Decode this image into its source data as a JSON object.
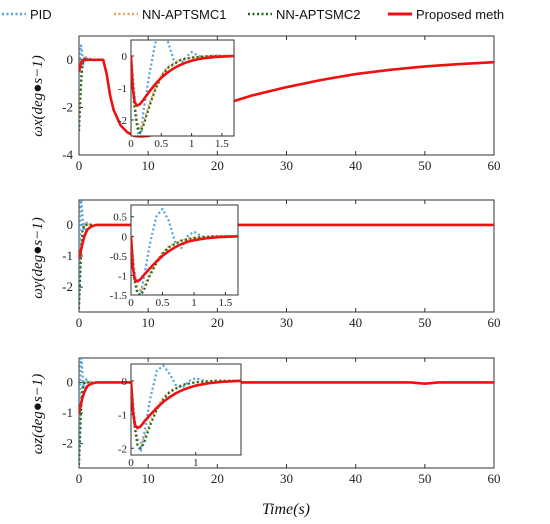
{
  "chart_data": {
    "type": "line",
    "legend": {
      "placement": "top",
      "entries": [
        {
          "name": "PID",
          "color": "#4fa3e0",
          "dash": "dot"
        },
        {
          "name": "NN-APTSMC1",
          "color": "#f4a460",
          "dash": "dot"
        },
        {
          "name": "NN-APTSMC2",
          "color": "#1a6b1a",
          "dash": "dot"
        },
        {
          "name": "Proposed meth",
          "color": "#ee1111",
          "dash": "solid"
        }
      ]
    },
    "xlabel": "Time(s)",
    "xlim": [
      0,
      60
    ],
    "xticks": [
      "0",
      "10",
      "20",
      "30",
      "40",
      "50",
      "60"
    ],
    "grid": false,
    "panels": [
      {
        "ylabel": "ωx(deg●s−1)",
        "ylim": [
          -4,
          1
        ],
        "yticks": [
          "0",
          "-2",
          "-4"
        ],
        "series": [
          {
            "name": "PID",
            "x": [
              0,
              0.1,
              0.2,
              0.3,
              0.45,
              0.6,
              0.8,
              1.0,
              1.3,
              1.6,
              2.0,
              3.5
            ],
            "y": [
              -3.0,
              -1.5,
              0.3,
              0.6,
              0.3,
              -0.2,
              -0.1,
              0.1,
              0.0,
              0.05,
              0.0,
              0.0
            ]
          },
          {
            "name": "NN-APTSMC1",
            "x": [
              0,
              0.15,
              0.3,
              0.5,
              0.8,
              1.2,
              2.0,
              3.5
            ],
            "y": [
              -2.6,
              -1.8,
              -0.8,
              -0.1,
              0.1,
              0.0,
              0.0,
              0.0
            ]
          },
          {
            "name": "NN-APTSMC2",
            "x": [
              0,
              0.15,
              0.3,
              0.5,
              0.8,
              1.2,
              2.0,
              3.5
            ],
            "y": [
              -3.0,
              -2.0,
              -1.0,
              -0.2,
              0.05,
              0.0,
              0.0,
              0.0
            ]
          },
          {
            "name": "Proposed meth",
            "x": [
              0,
              0.3,
              0.7,
              1.2,
              2.0,
              3.0,
              3.5,
              4.0,
              4.5,
              5,
              6,
              7,
              8,
              9,
              10,
              11,
              12,
              14,
              16,
              18,
              20,
              25,
              30,
              35,
              40,
              45,
              50,
              55,
              60
            ],
            "y": [
              -0.5,
              -0.1,
              0.0,
              0.0,
              0.0,
              0.0,
              0.0,
              -0.6,
              -1.5,
              -2.1,
              -2.75,
              -3.05,
              -3.2,
              -3.22,
              -3.2,
              -3.12,
              -3.0,
              -2.75,
              -2.45,
              -2.2,
              -1.95,
              -1.5,
              -1.15,
              -0.85,
              -0.6,
              -0.42,
              -0.28,
              -0.18,
              -0.1
            ]
          }
        ],
        "inset": {
          "xlim": [
            0,
            1.7
          ],
          "ylim": [
            -2.5,
            0.5
          ],
          "xticks": [
            "0",
            "0.5",
            "1",
            "1.5"
          ],
          "yticks": [
            "0",
            "-1",
            "-2"
          ],
          "series": [
            {
              "name": "PID",
              "x": [
                0,
                0.05,
                0.1,
                0.15,
                0.2,
                0.3,
                0.4,
                0.5,
                0.6,
                0.7,
                0.8,
                0.9,
                1.0,
                1.1,
                1.2,
                1.3,
                1.4,
                1.5,
                1.6,
                1.7
              ],
              "y": [
                0.0,
                -1.0,
                -2.2,
                -2.8,
                -1.8,
                -0.6,
                0.4,
                0.8,
                0.5,
                -0.1,
                -0.3,
                -0.05,
                0.12,
                0.02,
                -0.05,
                0.0,
                0.02,
                0.0,
                0.0,
                0.0
              ]
            },
            {
              "name": "NN-APTSMC1",
              "x": [
                0,
                0.05,
                0.1,
                0.15,
                0.2,
                0.3,
                0.4,
                0.5,
                0.6,
                0.8,
                1.0,
                1.3,
                1.7
              ],
              "y": [
                0.0,
                -1.2,
                -2.0,
                -2.3,
                -2.1,
                -1.5,
                -1.0,
                -0.6,
                -0.35,
                -0.12,
                -0.05,
                0.0,
                0.0
              ]
            },
            {
              "name": "NN-APTSMC2",
              "x": [
                0,
                0.05,
                0.1,
                0.15,
                0.2,
                0.3,
                0.4,
                0.5,
                0.6,
                0.8,
                1.0,
                1.3,
                1.7
              ],
              "y": [
                0.0,
                -1.5,
                -2.2,
                -2.4,
                -2.2,
                -1.6,
                -1.05,
                -0.65,
                -0.38,
                -0.14,
                -0.05,
                0.0,
                0.0
              ]
            },
            {
              "name": "Proposed meth",
              "x": [
                0,
                0.03,
                0.06,
                0.1,
                0.15,
                0.2,
                0.3,
                0.4,
                0.5,
                0.6,
                0.7,
                0.8,
                0.9,
                1.0,
                1.1,
                1.2,
                1.3,
                1.4,
                1.5,
                1.6,
                1.7
              ],
              "y": [
                0.0,
                -1.0,
                -1.45,
                -1.55,
                -1.5,
                -1.38,
                -1.12,
                -0.88,
                -0.68,
                -0.52,
                -0.39,
                -0.29,
                -0.21,
                -0.15,
                -0.1,
                -0.07,
                -0.05,
                -0.03,
                -0.02,
                -0.01,
                0.0
              ]
            }
          ]
        }
      },
      {
        "ylabel": "ωy(deg●s−1)",
        "ylim": [
          -2.8,
          0.8
        ],
        "yticks": [
          "0",
          "-1",
          "-2"
        ],
        "series": [
          {
            "name": "PID",
            "x": [
              0,
              0.1,
              0.2,
              0.3,
              0.45,
              0.6,
              0.8,
              1.0,
              1.3,
              1.6,
              2.0
            ],
            "y": [
              -2.5,
              -1.0,
              0.4,
              0.8,
              0.5,
              -0.1,
              -0.2,
              0.1,
              0.0,
              0.02,
              0.0
            ]
          },
          {
            "name": "NN-APTSMC1",
            "x": [
              0,
              0.15,
              0.3,
              0.5,
              0.8,
              1.2,
              2.0
            ],
            "y": [
              -2.4,
              -1.6,
              -0.7,
              -0.1,
              0.05,
              0.0,
              0.0
            ]
          },
          {
            "name": "NN-APTSMC2",
            "x": [
              0,
              0.15,
              0.3,
              0.5,
              0.8,
              1.2,
              2.0
            ],
            "y": [
              -2.7,
              -1.8,
              -0.9,
              -0.2,
              0.0,
              0.0,
              0.0
            ]
          },
          {
            "name": "Proposed meth",
            "x": [
              0,
              0.2,
              0.5,
              0.8,
              1.2,
              1.8,
              2.5,
              3.5,
              5,
              10,
              20,
              30,
              40,
              50,
              60
            ],
            "y": [
              -1.1,
              -0.9,
              -0.6,
              -0.35,
              -0.15,
              -0.05,
              0.0,
              0.0,
              0.0,
              0.0,
              0.0,
              0.0,
              0.0,
              0.0,
              0.0
            ]
          }
        ],
        "inset": {
          "xlim": [
            0,
            1.7
          ],
          "ylim": [
            -1.5,
            0.8
          ],
          "xticks": [
            "0",
            "0.5",
            "1",
            "1.5"
          ],
          "yticks": [
            "0.5",
            "0",
            "-0.5",
            "-1",
            "-1.5"
          ],
          "series": [
            {
              "name": "PID",
              "x": [
                0,
                0.05,
                0.1,
                0.15,
                0.2,
                0.3,
                0.4,
                0.5,
                0.6,
                0.7,
                0.8,
                0.9,
                1.0,
                1.1,
                1.2,
                1.3,
                1.5,
                1.7
              ],
              "y": [
                0.0,
                -0.8,
                -1.4,
                -1.5,
                -1.1,
                -0.2,
                0.5,
                0.7,
                0.4,
                -0.15,
                -0.3,
                0.0,
                0.12,
                0.02,
                -0.04,
                0.0,
                0.0,
                0.0
              ]
            },
            {
              "name": "NN-APTSMC1",
              "x": [
                0,
                0.05,
                0.1,
                0.15,
                0.2,
                0.3,
                0.4,
                0.5,
                0.6,
                0.8,
                1.0,
                1.3,
                1.7
              ],
              "y": [
                0.0,
                -0.9,
                -1.3,
                -1.4,
                -1.3,
                -0.95,
                -0.65,
                -0.42,
                -0.26,
                -0.1,
                -0.04,
                0.0,
                0.0
              ]
            },
            {
              "name": "NN-APTSMC2",
              "x": [
                0,
                0.05,
                0.1,
                0.15,
                0.2,
                0.3,
                0.4,
                0.5,
                0.6,
                0.8,
                1.0,
                1.3,
                1.7
              ],
              "y": [
                0.0,
                -1.1,
                -1.45,
                -1.5,
                -1.4,
                -1.0,
                -0.7,
                -0.45,
                -0.28,
                -0.11,
                -0.04,
                0.0,
                0.0
              ]
            },
            {
              "name": "Proposed meth",
              "x": [
                0,
                0.03,
                0.06,
                0.1,
                0.15,
                0.2,
                0.3,
                0.4,
                0.5,
                0.6,
                0.7,
                0.8,
                0.9,
                1.0,
                1.2,
                1.4,
                1.7
              ],
              "y": [
                0.0,
                -0.8,
                -1.1,
                -1.15,
                -1.1,
                -1.0,
                -0.82,
                -0.65,
                -0.5,
                -0.38,
                -0.28,
                -0.2,
                -0.14,
                -0.1,
                -0.05,
                -0.02,
                0.0
              ]
            }
          ]
        }
      },
      {
        "ylabel": "ωz(deg●s−1)",
        "ylim": [
          -2.8,
          0.8
        ],
        "yticks": [
          "0",
          "-1",
          "-2"
        ],
        "series": [
          {
            "name": "PID",
            "x": [
              0,
              0.1,
              0.2,
              0.3,
              0.45,
              0.6,
              0.8,
              1.0,
              1.3,
              1.6,
              2.0
            ],
            "y": [
              -2.6,
              -1.0,
              0.4,
              0.8,
              0.5,
              -0.1,
              -0.2,
              0.1,
              0.0,
              0.02,
              0.0
            ]
          },
          {
            "name": "NN-APTSMC1",
            "x": [
              0,
              0.15,
              0.3,
              0.5,
              0.8,
              1.2,
              2.0
            ],
            "y": [
              -2.4,
              -1.6,
              -0.7,
              -0.1,
              0.05,
              0.0,
              0.0
            ]
          },
          {
            "name": "NN-APTSMC2",
            "x": [
              0,
              0.15,
              0.3,
              0.5,
              0.8,
              1.2,
              2.0
            ],
            "y": [
              -2.7,
              -1.8,
              -0.9,
              -0.2,
              0.0,
              0.0,
              0.0
            ]
          },
          {
            "name": "Proposed meth",
            "x": [
              0,
              0.2,
              0.5,
              0.8,
              1.2,
              1.8,
              2.5,
              3.5,
              5,
              10,
              20,
              30,
              40,
              48,
              50,
              52,
              55,
              60
            ],
            "y": [
              -1.0,
              -0.8,
              -0.5,
              -0.3,
              -0.12,
              -0.04,
              0.0,
              0.0,
              0.0,
              0.0,
              0.0,
              0.0,
              0.0,
              0.0,
              -0.04,
              0.0,
              0.0,
              0.0
            ]
          }
        ],
        "inset": {
          "xlim": [
            0,
            1.7
          ],
          "ylim": [
            -2.2,
            0.5
          ],
          "xticks": [
            "0",
            "1"
          ],
          "yticks": [
            "0",
            "-1",
            "-2"
          ],
          "series": [
            {
              "name": "PID",
              "x": [
                0,
                0.05,
                0.1,
                0.15,
                0.2,
                0.3,
                0.4,
                0.5,
                0.6,
                0.7,
                0.8,
                0.9,
                1.0,
                1.1,
                1.2,
                1.3,
                1.5,
                1.7
              ],
              "y": [
                0.0,
                -1.0,
                -1.9,
                -2.1,
                -1.6,
                -0.5,
                0.3,
                0.45,
                0.2,
                -0.15,
                -0.2,
                0.0,
                0.08,
                0.02,
                -0.02,
                0.0,
                0.0,
                0.0
              ]
            },
            {
              "name": "NN-APTSMC1",
              "x": [
                0,
                0.05,
                0.1,
                0.15,
                0.2,
                0.3,
                0.4,
                0.5,
                0.6,
                0.8,
                1.0,
                1.3,
                1.7
              ],
              "y": [
                0.0,
                -1.1,
                -1.7,
                -1.85,
                -1.7,
                -1.2,
                -0.8,
                -0.5,
                -0.3,
                -0.11,
                -0.04,
                0.0,
                0.0
              ]
            },
            {
              "name": "NN-APTSMC2",
              "x": [
                0,
                0.05,
                0.1,
                0.15,
                0.2,
                0.3,
                0.4,
                0.5,
                0.6,
                0.8,
                1.0,
                1.3,
                1.7
              ],
              "y": [
                0.0,
                -1.3,
                -1.9,
                -2.0,
                -1.85,
                -1.3,
                -0.85,
                -0.55,
                -0.33,
                -0.12,
                -0.04,
                0.0,
                0.0
              ]
            },
            {
              "name": "Proposed meth",
              "x": [
                0,
                0.03,
                0.06,
                0.1,
                0.15,
                0.2,
                0.3,
                0.4,
                0.5,
                0.6,
                0.7,
                0.8,
                0.9,
                1.0,
                1.2,
                1.4,
                1.7
              ],
              "y": [
                0.0,
                -0.9,
                -1.3,
                -1.4,
                -1.35,
                -1.22,
                -1.0,
                -0.8,
                -0.62,
                -0.48,
                -0.36,
                -0.27,
                -0.2,
                -0.14,
                -0.07,
                -0.03,
                0.0
              ]
            }
          ]
        }
      }
    ]
  }
}
